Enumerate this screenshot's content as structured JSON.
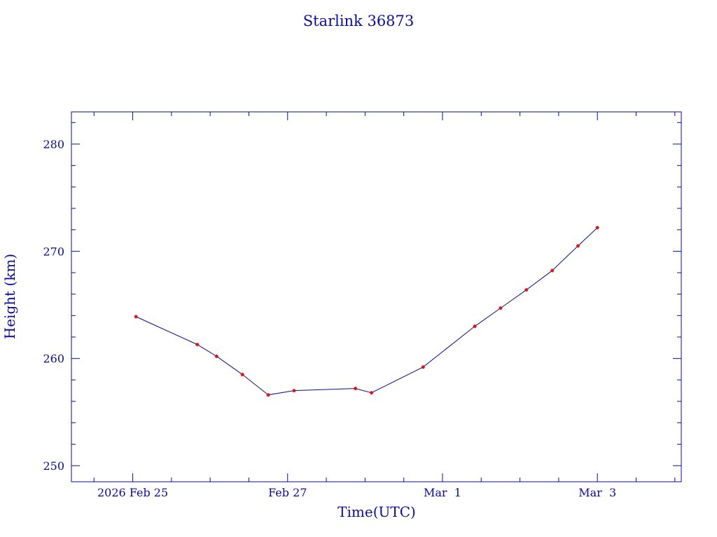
{
  "chart_data": {
    "type": "line",
    "title": "Starlink 36873",
    "xlabel": "Time(UTC)",
    "ylabel": "Height (km)",
    "x_tick_labels": [
      {
        "date": "2026-02-25",
        "label": "2026 Feb 25"
      },
      {
        "date": "2026-02-27",
        "label": "Feb 27"
      },
      {
        "date": "2026-03-01",
        "label": "Mar  1"
      },
      {
        "date": "2026-03-03",
        "label": "Mar  3"
      }
    ],
    "xlim": [
      "2026-02-24T05:00",
      "2026-03-04T02:00"
    ],
    "ylim": [
      248.5,
      283
    ],
    "y_ticks": [
      250,
      260,
      270,
      280
    ],
    "grid": false,
    "series": [
      {
        "line_color": "#0b0b9e",
        "marker_color": "#e01010",
        "points": [
          {
            "x": "2026-02-25T01:00",
            "y": 263.9
          },
          {
            "x": "2026-02-25T20:00",
            "y": 261.3
          },
          {
            "x": "2026-02-26T02:00",
            "y": 260.2
          },
          {
            "x": "2026-02-26T10:00",
            "y": 258.5
          },
          {
            "x": "2026-02-26T18:00",
            "y": 256.6
          },
          {
            "x": "2026-02-27T02:00",
            "y": 257.0
          },
          {
            "x": "2026-02-27T21:00",
            "y": 257.2
          },
          {
            "x": "2026-02-28T02:00",
            "y": 256.8
          },
          {
            "x": "2026-02-28T18:00",
            "y": 259.2
          },
          {
            "x": "2026-03-01T10:00",
            "y": 263.0
          },
          {
            "x": "2026-03-01T18:00",
            "y": 264.7
          },
          {
            "x": "2026-03-02T02:00",
            "y": 266.4
          },
          {
            "x": "2026-03-02T10:00",
            "y": 268.2
          },
          {
            "x": "2026-03-02T18:00",
            "y": 270.5
          },
          {
            "x": "2026-03-03T00:00",
            "y": 272.2
          }
        ]
      }
    ]
  }
}
